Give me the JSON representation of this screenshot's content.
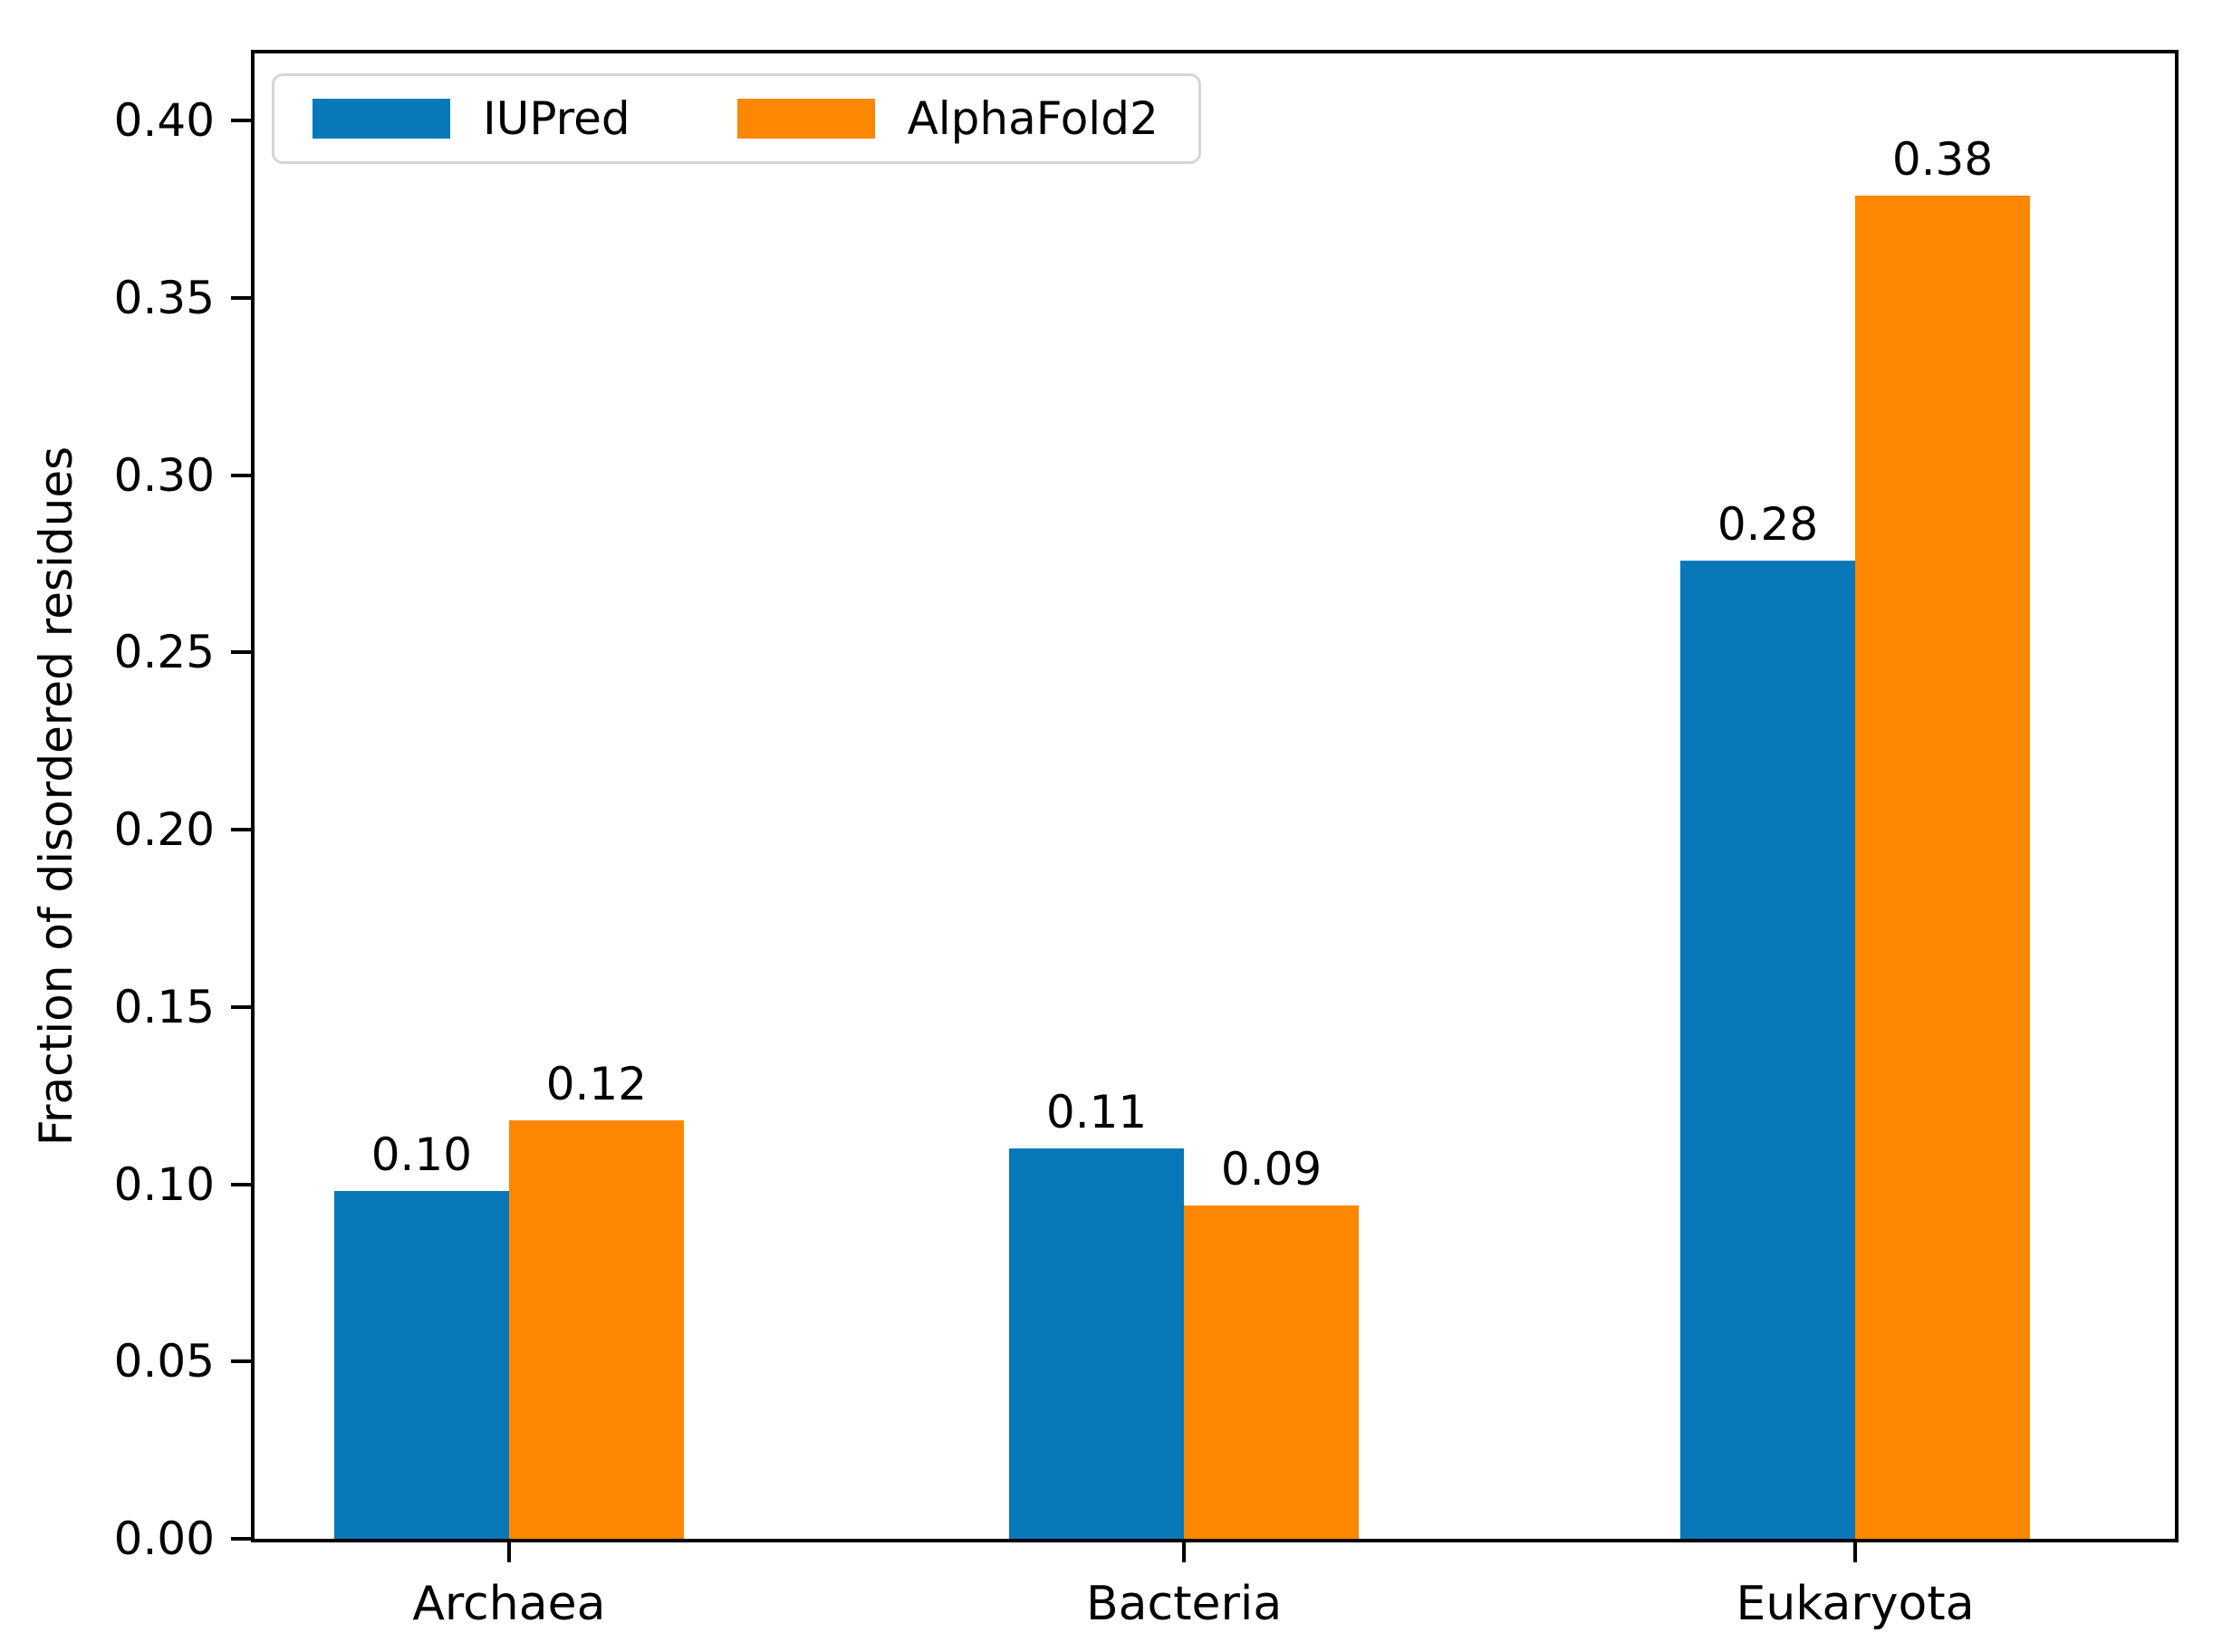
{
  "chart_data": {
    "type": "bar",
    "title": "",
    "xlabel": "",
    "ylabel": "Fraction of disordered residues",
    "categories": [
      "Archaea",
      "Bacteria",
      "Eukaryota"
    ],
    "series": [
      {
        "name": "IUPred",
        "color": "#0878b8",
        "values": [
          0.1,
          0.11,
          0.28
        ],
        "value_labels": [
          "0.10",
          "0.11",
          "0.28"
        ],
        "bar_heights": [
          0.098,
          0.11,
          0.276
        ]
      },
      {
        "name": "AlphaFold2",
        "color": "#fe8702",
        "values": [
          0.12,
          0.09,
          0.38
        ],
        "value_labels": [
          "0.12",
          "0.09",
          "0.38"
        ],
        "bar_heights": [
          0.118,
          0.094,
          0.379
        ]
      }
    ],
    "yticks": [
      "0.00",
      "0.05",
      "0.10",
      "0.15",
      "0.20",
      "0.25",
      "0.30",
      "0.35",
      "0.40"
    ],
    "ylim": [
      0,
      0.419
    ],
    "grid": false,
    "legend_position": "upper-left",
    "axis_color": "#000000",
    "text_color": "#000000",
    "background_color": "#ffffff"
  }
}
